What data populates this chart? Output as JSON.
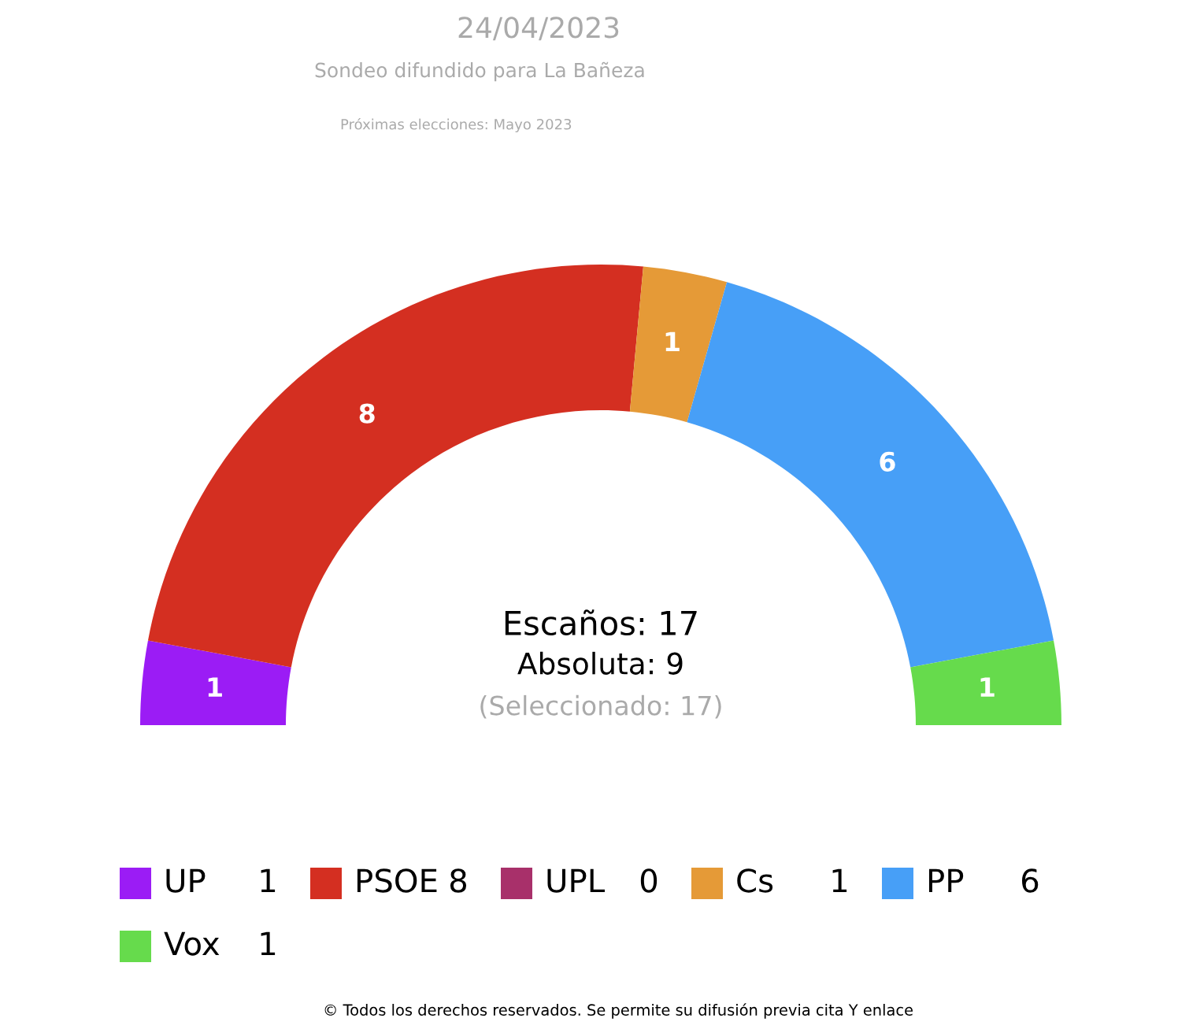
{
  "chart_data": {
    "type": "donut",
    "title": "24/04/2023",
    "subtitle": "Sondeo difundido para La Bañeza",
    "categories": [
      "UP",
      "PSOE",
      "UPL",
      "Cs",
      "PP",
      "Vox"
    ],
    "values": [
      1,
      8,
      0,
      1,
      6,
      1
    ],
    "colors": [
      "#9b1cf5",
      "#d42f21",
      "#a8306a",
      "#e59a37",
      "#479ff7",
      "#66db4c"
    ],
    "value_labels": [
      "1",
      "8",
      "0",
      "1",
      "6",
      "1"
    ],
    "data_labels": true,
    "legend": "bottom",
    "annotations": [
      "Próximas elecciones: Mayo 2023",
      "Escaños: 17",
      "Absoluta: 9",
      "(Seleccionado: 17)",
      "© Todos los derechos reservados. Se permite su difusión previa cita Y enlace"
    ]
  }
}
